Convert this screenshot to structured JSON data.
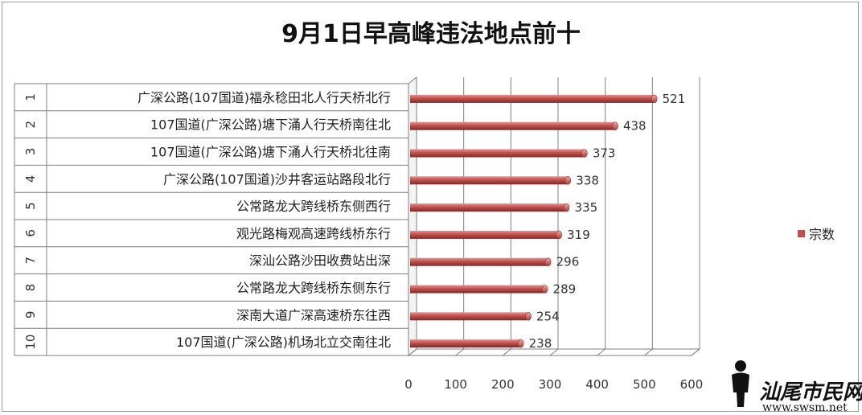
{
  "chart_data": {
    "type": "bar",
    "orientation": "horizontal",
    "title": "9月1日早高峰违法地点前十",
    "ranks": [
      "1",
      "2",
      "3",
      "4",
      "5",
      "6",
      "7",
      "8",
      "9",
      "10"
    ],
    "categories": [
      "广深公路(107国道)福永稔田北人行天桥北行",
      "107国道(广深公路)塘下涌人行天桥南往北",
      "107国道(广深公路)塘下涌人行天桥北往南",
      "广深公路(107国道)沙井客运站路段北行",
      "公常路龙大跨线桥东侧西行",
      "观光路梅观高速跨线桥东行",
      "深汕公路沙田收费站出深",
      "公常路龙大跨线桥东侧东行",
      "深南大道广深高速桥东往西",
      "107国道(广深公路)机场北立交南往北"
    ],
    "series": [
      {
        "name": "宗数",
        "values": [
          521,
          438,
          373,
          338,
          335,
          319,
          296,
          289,
          254,
          238
        ]
      }
    ],
    "value_labels": [
      "521",
      "438",
      "373",
      "338",
      "335",
      "319",
      "296",
      "289",
      "254",
      "238"
    ],
    "xlim": [
      0,
      600
    ],
    "x_ticks": [
      "0",
      "100",
      "200",
      "300",
      "400",
      "500",
      "600"
    ],
    "grid": true,
    "legend_position": "right",
    "bar_color": "#c0504d"
  },
  "watermark": {
    "text": "汕尾市民网",
    "url": "www.swsm.net"
  }
}
